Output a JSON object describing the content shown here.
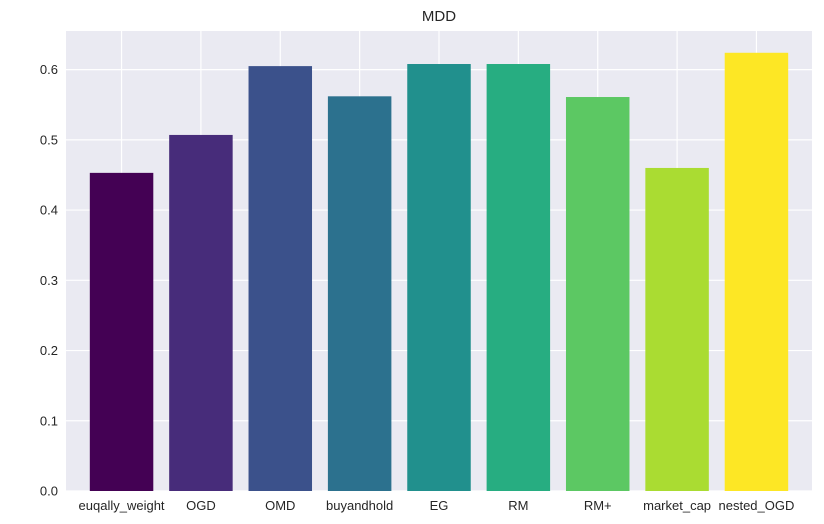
{
  "chart_data": {
    "type": "bar",
    "title": "MDD",
    "xlabel": "",
    "ylabel": "",
    "categories": [
      "euqally_weight",
      "OGD",
      "OMD",
      "buyandhold",
      "EG",
      "RM",
      "RM+",
      "market_cap",
      "nested_OGD"
    ],
    "values": [
      0.453,
      0.507,
      0.605,
      0.562,
      0.608,
      0.608,
      0.561,
      0.46,
      0.624
    ],
    "colors": [
      "#440154",
      "#482878",
      "#3e4989",
      "#31688e",
      "#26828e",
      "#1f9e89",
      "#35b779",
      "#6ece58",
      "#b5de2b",
      "#fde725"
    ],
    "bar_colors": [
      "#440154",
      "#472c7a",
      "#3b518b",
      "#2c718e",
      "#21908d",
      "#27ad81",
      "#5cc863",
      "#aadc32",
      "#fde725"
    ],
    "ylim": [
      0,
      0.655
    ],
    "yticks": [
      0.0,
      0.1,
      0.2,
      0.3,
      0.4,
      0.5,
      0.6
    ],
    "ytick_labels": [
      "0.0",
      "0.1",
      "0.2",
      "0.3",
      "0.4",
      "0.5",
      "0.6"
    ],
    "grid": true,
    "background": "#eaeaf2"
  }
}
